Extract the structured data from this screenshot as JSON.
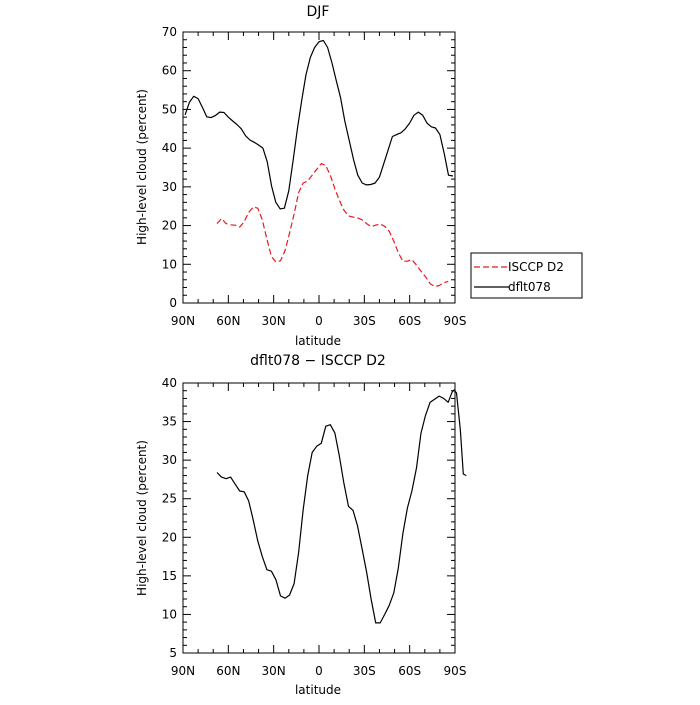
{
  "chart_data": [
    {
      "type": "line",
      "title": "DJF",
      "xlabel": "latitude",
      "ylabel": "High-level cloud (percent)",
      "xlim": [
        90,
        -90
      ],
      "ylim": [
        0,
        70
      ],
      "x_ticks": [
        90,
        60,
        30,
        0,
        -30,
        -60,
        -90
      ],
      "x_tick_labels": [
        "90N",
        "60N",
        "30N",
        "0",
        "30S",
        "60S",
        "90S"
      ],
      "y_ticks": [
        0,
        10,
        20,
        30,
        40,
        50,
        60,
        70
      ],
      "y_tick_labels": [
        "0",
        "10",
        "20",
        "30",
        "40",
        "50",
        "60",
        "70"
      ],
      "grid": false,
      "legend": "outside-right",
      "series": [
        {
          "name": "ISCCP D2",
          "color": "#e8191e",
          "dash": "dashed",
          "points": [
            [
              67.5,
              20.5
            ],
            [
              64.5,
              21.8
            ],
            [
              61.5,
              20.5
            ],
            [
              58.5,
              20.2
            ],
            [
              55.5,
              20.1
            ],
            [
              52.5,
              19.6
            ],
            [
              49.5,
              21.0
            ],
            [
              46.5,
              23.4
            ],
            [
              43.5,
              24.8
            ],
            [
              40.5,
              24.5
            ],
            [
              37.5,
              21.5
            ],
            [
              34.5,
              16.5
            ],
            [
              31.5,
              12.0
            ],
            [
              28.5,
              10.6
            ],
            [
              25.5,
              10.9
            ],
            [
              22.5,
              13.5
            ],
            [
              19.5,
              18.0
            ],
            [
              16.5,
              23.0
            ],
            [
              13.5,
              28.5
            ],
            [
              10.5,
              31.0
            ],
            [
              7.5,
              31.5
            ],
            [
              4.5,
              33.0
            ],
            [
              1.5,
              34.5
            ],
            [
              -1.5,
              36.0
            ],
            [
              -4.5,
              35.5
            ],
            [
              -7.5,
              33.0
            ],
            [
              -10.5,
              29.5
            ],
            [
              -13.5,
              26.5
            ],
            [
              -16.5,
              24.0
            ],
            [
              -19.5,
              22.5
            ],
            [
              -22.5,
              22.2
            ],
            [
              -25.5,
              22.0
            ],
            [
              -28.5,
              21.5
            ],
            [
              -31.5,
              20.5
            ],
            [
              -34.5,
              19.7
            ],
            [
              -37.5,
              20.1
            ],
            [
              -40.5,
              20.4
            ],
            [
              -43.5,
              19.8
            ],
            [
              -46.5,
              18.5
            ],
            [
              -49.5,
              16.0
            ],
            [
              -52.5,
              13.0
            ],
            [
              -55.5,
              10.8
            ],
            [
              -58.5,
              10.8
            ],
            [
              -61.5,
              11.2
            ],
            [
              -64.5,
              9.8
            ],
            [
              -67.5,
              8.2
            ],
            [
              -70.5,
              6.8
            ],
            [
              -73.5,
              5.0
            ],
            [
              -76.5,
              4.3
            ],
            [
              -79.5,
              4.5
            ],
            [
              -82.5,
              5.2
            ],
            [
              -85.5,
              5.6
            ]
          ]
        },
        {
          "name": "dflt078",
          "color": "#000000",
          "dash": "solid",
          "points": [
            [
              88.6,
              48.6
            ],
            [
              85.7,
              51.9
            ],
            [
              82.9,
              53.4
            ],
            [
              80.0,
              52.8
            ],
            [
              77.1,
              50.5
            ],
            [
              74.3,
              48.1
            ],
            [
              71.4,
              47.9
            ],
            [
              68.6,
              48.4
            ],
            [
              65.7,
              49.3
            ],
            [
              62.9,
              49.2
            ],
            [
              60.0,
              48.0
            ],
            [
              57.1,
              47.0
            ],
            [
              54.3,
              46.1
            ],
            [
              51.4,
              45.0
            ],
            [
              48.6,
              43.2
            ],
            [
              45.7,
              42.1
            ],
            [
              42.9,
              41.5
            ],
            [
              40.0,
              40.8
            ],
            [
              37.1,
              40.0
            ],
            [
              34.3,
              36.5
            ],
            [
              31.4,
              30.2
            ],
            [
              28.6,
              26.0
            ],
            [
              25.7,
              24.3
            ],
            [
              22.9,
              24.5
            ],
            [
              20.0,
              29.0
            ],
            [
              17.1,
              37.0
            ],
            [
              14.3,
              45.0
            ],
            [
              11.4,
              52.5
            ],
            [
              8.6,
              59.0
            ],
            [
              5.7,
              63.5
            ],
            [
              2.9,
              66.0
            ],
            [
              0.0,
              67.5
            ],
            [
              -2.9,
              67.8
            ],
            [
              -5.7,
              66.0
            ],
            [
              -8.6,
              62.0
            ],
            [
              -11.4,
              57.5
            ],
            [
              -14.3,
              53.0
            ],
            [
              -17.1,
              47.0
            ],
            [
              -20.0,
              42.0
            ],
            [
              -22.9,
              37.0
            ],
            [
              -25.7,
              33.0
            ],
            [
              -28.6,
              31.0
            ],
            [
              -31.4,
              30.5
            ],
            [
              -34.3,
              30.6
            ],
            [
              -37.1,
              31.0
            ],
            [
              -40.0,
              32.5
            ],
            [
              -42.9,
              36.0
            ],
            [
              -45.7,
              39.5
            ],
            [
              -48.6,
              43.0
            ],
            [
              -51.4,
              43.5
            ],
            [
              -54.3,
              44.0
            ],
            [
              -57.1,
              45.0
            ],
            [
              -60.0,
              46.5
            ],
            [
              -62.9,
              48.5
            ],
            [
              -65.7,
              49.3
            ],
            [
              -68.6,
              48.5
            ],
            [
              -71.4,
              46.5
            ],
            [
              -74.3,
              45.5
            ],
            [
              -77.1,
              45.2
            ],
            [
              -80.0,
              43.5
            ],
            [
              -82.9,
              38.5
            ],
            [
              -85.7,
              33.0
            ],
            [
              -88.6,
              32.8
            ]
          ]
        }
      ]
    },
    {
      "type": "line",
      "title": "dflt078 − ISCCP D2",
      "xlabel": "latitude",
      "ylabel": "High-level cloud (percent)",
      "xlim": [
        90,
        -90
      ],
      "ylim": [
        5,
        40
      ],
      "x_ticks": [
        90,
        60,
        30,
        0,
        -30,
        -60,
        -90
      ],
      "x_tick_labels": [
        "90N",
        "60N",
        "30N",
        "0",
        "30S",
        "60S",
        "90S"
      ],
      "y_ticks": [
        5,
        10,
        15,
        20,
        25,
        30,
        35,
        40
      ],
      "y_tick_labels": [
        "5",
        "10",
        "15",
        "20",
        "25",
        "30",
        "35",
        "40"
      ],
      "grid": false,
      "legend": "none",
      "series": [
        {
          "color": "#000000",
          "dash": "solid",
          "points": [
            [
              67.5,
              28.4
            ],
            [
              64.5,
              27.8
            ],
            [
              61.5,
              27.6
            ],
            [
              58.5,
              27.8
            ],
            [
              55.5,
              26.9
            ],
            [
              52.5,
              26.0
            ],
            [
              49.5,
              25.9
            ],
            [
              46.5,
              24.7
            ],
            [
              43.5,
              22.2
            ],
            [
              40.5,
              19.5
            ],
            [
              37.5,
              17.5
            ],
            [
              34.5,
              15.8
            ],
            [
              31.5,
              15.6
            ],
            [
              28.5,
              14.5
            ],
            [
              25.5,
              12.4
            ],
            [
              22.5,
              12.1
            ],
            [
              19.5,
              12.5
            ],
            [
              16.5,
              14.0
            ],
            [
              13.5,
              18.0
            ],
            [
              10.5,
              23.5
            ],
            [
              7.5,
              28.0
            ],
            [
              4.5,
              31.0
            ],
            [
              1.5,
              31.8
            ],
            [
              -1.5,
              32.2
            ],
            [
              -4.5,
              34.4
            ],
            [
              -7.5,
              34.6
            ],
            [
              -10.5,
              33.5
            ],
            [
              -13.5,
              30.5
            ],
            [
              -16.5,
              27.0
            ],
            [
              -19.5,
              24.0
            ],
            [
              -22.5,
              23.5
            ],
            [
              -25.5,
              21.5
            ],
            [
              -28.5,
              18.5
            ],
            [
              -31.5,
              15.5
            ],
            [
              -34.5,
              12.0
            ],
            [
              -37.5,
              8.9
            ],
            [
              -40.5,
              8.9
            ],
            [
              -43.5,
              10.0
            ],
            [
              -46.5,
              11.2
            ],
            [
              -49.5,
              12.8
            ],
            [
              -52.5,
              16.0
            ],
            [
              -55.5,
              20.5
            ],
            [
              -58.5,
              23.8
            ],
            [
              -61.5,
              26.0
            ],
            [
              -64.5,
              29.0
            ],
            [
              -67.5,
              33.5
            ],
            [
              -70.5,
              35.8
            ],
            [
              -73.5,
              37.5
            ],
            [
              -76.5,
              37.9
            ],
            [
              -79.5,
              38.3
            ],
            [
              -82.5,
              38.0
            ],
            [
              -85.5,
              37.5
            ],
            [
              -88.0,
              38.8
            ],
            [
              -89.5,
              39.1
            ],
            [
              -91.0,
              38.7
            ],
            [
              -93.5,
              34.0
            ],
            [
              -95.5,
              28.2
            ],
            [
              -97.5,
              28.0
            ]
          ]
        }
      ]
    }
  ]
}
